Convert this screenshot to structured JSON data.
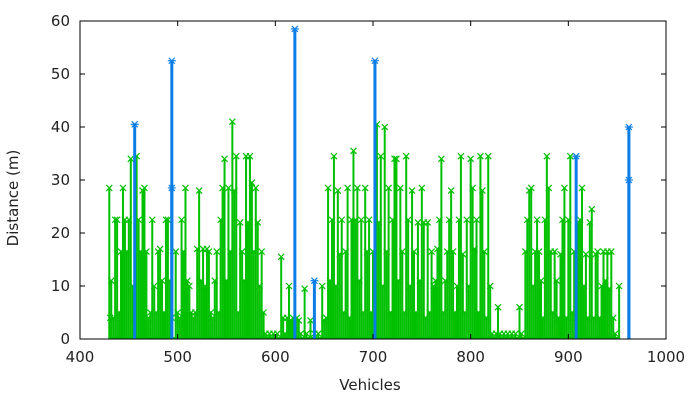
{
  "chart_data": {
    "type": "line",
    "title": "",
    "xlabel": "Vehicles",
    "ylabel": "Distance (m)",
    "xlim": [
      400,
      1000
    ],
    "ylim": [
      0,
      60
    ],
    "x_ticks": [
      "400",
      "500",
      "600",
      "700",
      "800",
      "900",
      "1000"
    ],
    "y_ticks": [
      "0",
      "10",
      "20",
      "30",
      "40",
      "50",
      "60"
    ],
    "grid": false,
    "legend": "none",
    "colors": {
      "green_series": "#00c000",
      "blue_series": "#0a7ee6"
    },
    "series": [
      {
        "color": "#00c000",
        "marker": "x",
        "style": "impulses",
        "points": [
          [
            430,
            28.5
          ],
          [
            431,
            4
          ],
          [
            432,
            11
          ],
          [
            434,
            4
          ],
          [
            436,
            22.5
          ],
          [
            438,
            22.5
          ],
          [
            440,
            5
          ],
          [
            442,
            16.5
          ],
          [
            444,
            28.5
          ],
          [
            446,
            22.5
          ],
          [
            448,
            16.5
          ],
          [
            450,
            22.5
          ],
          [
            452,
            34
          ],
          [
            454,
            10
          ],
          [
            456,
            4
          ],
          [
            458,
            34.5
          ],
          [
            460,
            22.5
          ],
          [
            462,
            16.5
          ],
          [
            464,
            28
          ],
          [
            466,
            28.5
          ],
          [
            468,
            16.5
          ],
          [
            470,
            4
          ],
          [
            472,
            5
          ],
          [
            474,
            22.5
          ],
          [
            476,
            10
          ],
          [
            478,
            5
          ],
          [
            480,
            16.5
          ],
          [
            482,
            17
          ],
          [
            484,
            11
          ],
          [
            486,
            5
          ],
          [
            488,
            22.5
          ],
          [
            490,
            22.5
          ],
          [
            492,
            11
          ],
          [
            494,
            4
          ],
          [
            498,
            16.5
          ],
          [
            500,
            5
          ],
          [
            502,
            4
          ],
          [
            504,
            22.5
          ],
          [
            506,
            16.5
          ],
          [
            508,
            28.5
          ],
          [
            510,
            11
          ],
          [
            512,
            10
          ],
          [
            514,
            5
          ],
          [
            516,
            4
          ],
          [
            518,
            5
          ],
          [
            520,
            17
          ],
          [
            522,
            28
          ],
          [
            524,
            11
          ],
          [
            526,
            17
          ],
          [
            528,
            10
          ],
          [
            530,
            17
          ],
          [
            532,
            16.5
          ],
          [
            534,
            5
          ],
          [
            536,
            4
          ],
          [
            538,
            11
          ],
          [
            540,
            16.5
          ],
          [
            542,
            5
          ],
          [
            544,
            22.5
          ],
          [
            546,
            28.5
          ],
          [
            548,
            34
          ],
          [
            550,
            11
          ],
          [
            552,
            28.5
          ],
          [
            554,
            16.5
          ],
          [
            556,
            41
          ],
          [
            558,
            28
          ],
          [
            560,
            34.5
          ],
          [
            562,
            5
          ],
          [
            564,
            22
          ],
          [
            566,
            16.5
          ],
          [
            568,
            11
          ],
          [
            570,
            34.5
          ],
          [
            572,
            22
          ],
          [
            574,
            34.5
          ],
          [
            576,
            29.5
          ],
          [
            578,
            16.5
          ],
          [
            580,
            28.5
          ],
          [
            582,
            22
          ],
          [
            584,
            10
          ],
          [
            586,
            16.5
          ],
          [
            588,
            5
          ],
          [
            590,
            1
          ],
          [
            594,
            1
          ],
          [
            598,
            1
          ],
          [
            602,
            1
          ],
          [
            606,
            15.5
          ],
          [
            608,
            4
          ],
          [
            610,
            1
          ],
          [
            612,
            4
          ],
          [
            614,
            10
          ],
          [
            616,
            3.5
          ],
          [
            618,
            4
          ],
          [
            622,
            4
          ],
          [
            624,
            3.5
          ],
          [
            626,
            1
          ],
          [
            630,
            9.5
          ],
          [
            632,
            1
          ],
          [
            636,
            3.5
          ],
          [
            640,
            1
          ],
          [
            644,
            1
          ],
          [
            648,
            10
          ],
          [
            650,
            3.5
          ],
          [
            652,
            4
          ],
          [
            654,
            28.5
          ],
          [
            656,
            11
          ],
          [
            658,
            22.5
          ],
          [
            660,
            34.5
          ],
          [
            662,
            10
          ],
          [
            664,
            28
          ],
          [
            666,
            16
          ],
          [
            668,
            22.5
          ],
          [
            670,
            5
          ],
          [
            672,
            16.5
          ],
          [
            674,
            28.5
          ],
          [
            676,
            4
          ],
          [
            678,
            22.5
          ],
          [
            680,
            35.5
          ],
          [
            682,
            22.5
          ],
          [
            684,
            28.5
          ],
          [
            686,
            11
          ],
          [
            688,
            22.5
          ],
          [
            690,
            5
          ],
          [
            692,
            28.5
          ],
          [
            694,
            16.5
          ],
          [
            696,
            22.5
          ],
          [
            698,
            5
          ],
          [
            700,
            16.5
          ],
          [
            702,
            4
          ],
          [
            704,
            40.5
          ],
          [
            706,
            22
          ],
          [
            708,
            34.5
          ],
          [
            710,
            10
          ],
          [
            712,
            40
          ],
          [
            714,
            16.5
          ],
          [
            716,
            28.5
          ],
          [
            718,
            5
          ],
          [
            720,
            22.5
          ],
          [
            722,
            34
          ],
          [
            724,
            34
          ],
          [
            726,
            11
          ],
          [
            728,
            28.5
          ],
          [
            730,
            16.5
          ],
          [
            732,
            5
          ],
          [
            734,
            34.5
          ],
          [
            736,
            22.5
          ],
          [
            738,
            10
          ],
          [
            740,
            28
          ],
          [
            742,
            16.5
          ],
          [
            744,
            5
          ],
          [
            746,
            22
          ],
          [
            748,
            11
          ],
          [
            750,
            28.5
          ],
          [
            752,
            22
          ],
          [
            754,
            4
          ],
          [
            756,
            22
          ],
          [
            758,
            5
          ],
          [
            760,
            16.5
          ],
          [
            762,
            10
          ],
          [
            764,
            11
          ],
          [
            766,
            17
          ],
          [
            768,
            22.5
          ],
          [
            770,
            34
          ],
          [
            772,
            5
          ],
          [
            774,
            11
          ],
          [
            776,
            16.5
          ],
          [
            778,
            22.5
          ],
          [
            780,
            28
          ],
          [
            782,
            16.5
          ],
          [
            784,
            5
          ],
          [
            786,
            10
          ],
          [
            788,
            22.5
          ],
          [
            790,
            34.5
          ],
          [
            792,
            16
          ],
          [
            794,
            5
          ],
          [
            796,
            22.5
          ],
          [
            798,
            10
          ],
          [
            800,
            34
          ],
          [
            802,
            28.5
          ],
          [
            804,
            17
          ],
          [
            806,
            22.5
          ],
          [
            808,
            5
          ],
          [
            810,
            34.5
          ],
          [
            812,
            28
          ],
          [
            814,
            16.5
          ],
          [
            816,
            4
          ],
          [
            818,
            34.5
          ],
          [
            820,
            10
          ],
          [
            822,
            1
          ],
          [
            826,
            1
          ],
          [
            828,
            6
          ],
          [
            830,
            1
          ],
          [
            834,
            1
          ],
          [
            838,
            1
          ],
          [
            842,
            1
          ],
          [
            846,
            1
          ],
          [
            850,
            6
          ],
          [
            852,
            1
          ],
          [
            856,
            16.5
          ],
          [
            858,
            22.5
          ],
          [
            860,
            28
          ],
          [
            862,
            28.5
          ],
          [
            864,
            10
          ],
          [
            866,
            16.5
          ],
          [
            868,
            22.5
          ],
          [
            870,
            16.5
          ],
          [
            872,
            11
          ],
          [
            874,
            4
          ],
          [
            876,
            22.5
          ],
          [
            878,
            34.5
          ],
          [
            880,
            28.5
          ],
          [
            882,
            16.5
          ],
          [
            884,
            5
          ],
          [
            886,
            16.5
          ],
          [
            888,
            11
          ],
          [
            890,
            4
          ],
          [
            892,
            16
          ],
          [
            894,
            22.5
          ],
          [
            896,
            28.5
          ],
          [
            898,
            4
          ],
          [
            900,
            22.5
          ],
          [
            902,
            34.5
          ],
          [
            904,
            5
          ],
          [
            906,
            16.5
          ],
          [
            908,
            4
          ],
          [
            910,
            22
          ],
          [
            912,
            22.5
          ],
          [
            914,
            28.5
          ],
          [
            916,
            10
          ],
          [
            918,
            16
          ],
          [
            920,
            4
          ],
          [
            922,
            22
          ],
          [
            924,
            24.5
          ],
          [
            926,
            4
          ],
          [
            928,
            16
          ],
          [
            930,
            16.5
          ],
          [
            932,
            4
          ],
          [
            934,
            10
          ],
          [
            936,
            16.5
          ],
          [
            938,
            11
          ],
          [
            940,
            16.5
          ],
          [
            942,
            9.5
          ],
          [
            944,
            16.5
          ],
          [
            946,
            4
          ],
          [
            948,
            1
          ],
          [
            952,
            10
          ]
        ]
      },
      {
        "color": "#0a7ee6",
        "marker": "*",
        "style": "impulses",
        "points": [
          [
            456,
            40.5
          ],
          [
            494,
            52.5
          ],
          [
            494,
            28.5
          ],
          [
            620,
            58.5
          ],
          [
            640,
            11
          ],
          [
            702,
            52.5
          ],
          [
            908,
            34.5
          ],
          [
            962,
            40
          ],
          [
            962,
            30
          ]
        ]
      }
    ]
  }
}
